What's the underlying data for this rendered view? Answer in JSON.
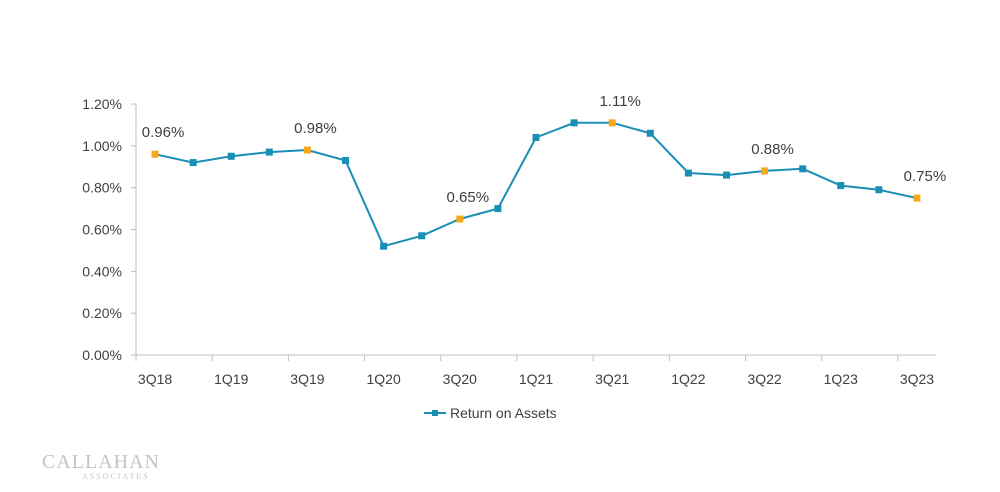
{
  "chart_data": {
    "type": "line",
    "categories": [
      "3Q18",
      "4Q18",
      "1Q19",
      "2Q19",
      "3Q19",
      "4Q19",
      "1Q20",
      "2Q20",
      "3Q20",
      "4Q20",
      "1Q21",
      "2Q21",
      "3Q21",
      "4Q21",
      "1Q22",
      "2Q22",
      "3Q22",
      "4Q22",
      "1Q23",
      "2Q23",
      "3Q23"
    ],
    "x_tick_labels": [
      "3Q18",
      "1Q19",
      "3Q19",
      "1Q20",
      "3Q20",
      "1Q21",
      "3Q21",
      "1Q22",
      "3Q22",
      "1Q23",
      "3Q23"
    ],
    "series": [
      {
        "name": "Return on Assets",
        "values": [
          0.96,
          0.92,
          0.95,
          0.97,
          0.98,
          0.93,
          0.52,
          0.57,
          0.65,
          0.7,
          1.04,
          1.11,
          1.11,
          1.06,
          0.87,
          0.86,
          0.88,
          0.89,
          0.81,
          0.79,
          0.75
        ],
        "color": "#1a8fb5"
      }
    ],
    "highlighted_points": [
      0,
      4,
      8,
      12,
      16,
      20
    ],
    "highlight_color": "#f5a81c",
    "data_labels": [
      {
        "index": 0,
        "text": "0.96%"
      },
      {
        "index": 4,
        "text": "0.98%"
      },
      {
        "index": 8,
        "text": "0.65%"
      },
      {
        "index": 12,
        "text": "1.11%"
      },
      {
        "index": 16,
        "text": "0.88%"
      },
      {
        "index": 20,
        "text": "0.75%"
      }
    ],
    "y_ticks": [
      "0.00%",
      "0.20%",
      "0.40%",
      "0.60%",
      "0.80%",
      "1.00%",
      "1.20%"
    ],
    "ylim": [
      0,
      1.2
    ],
    "grid": false,
    "legend_position": "bottom-center"
  },
  "logo": {
    "main": "CALLAHAN",
    "sub": "ASSOCIATES"
  }
}
